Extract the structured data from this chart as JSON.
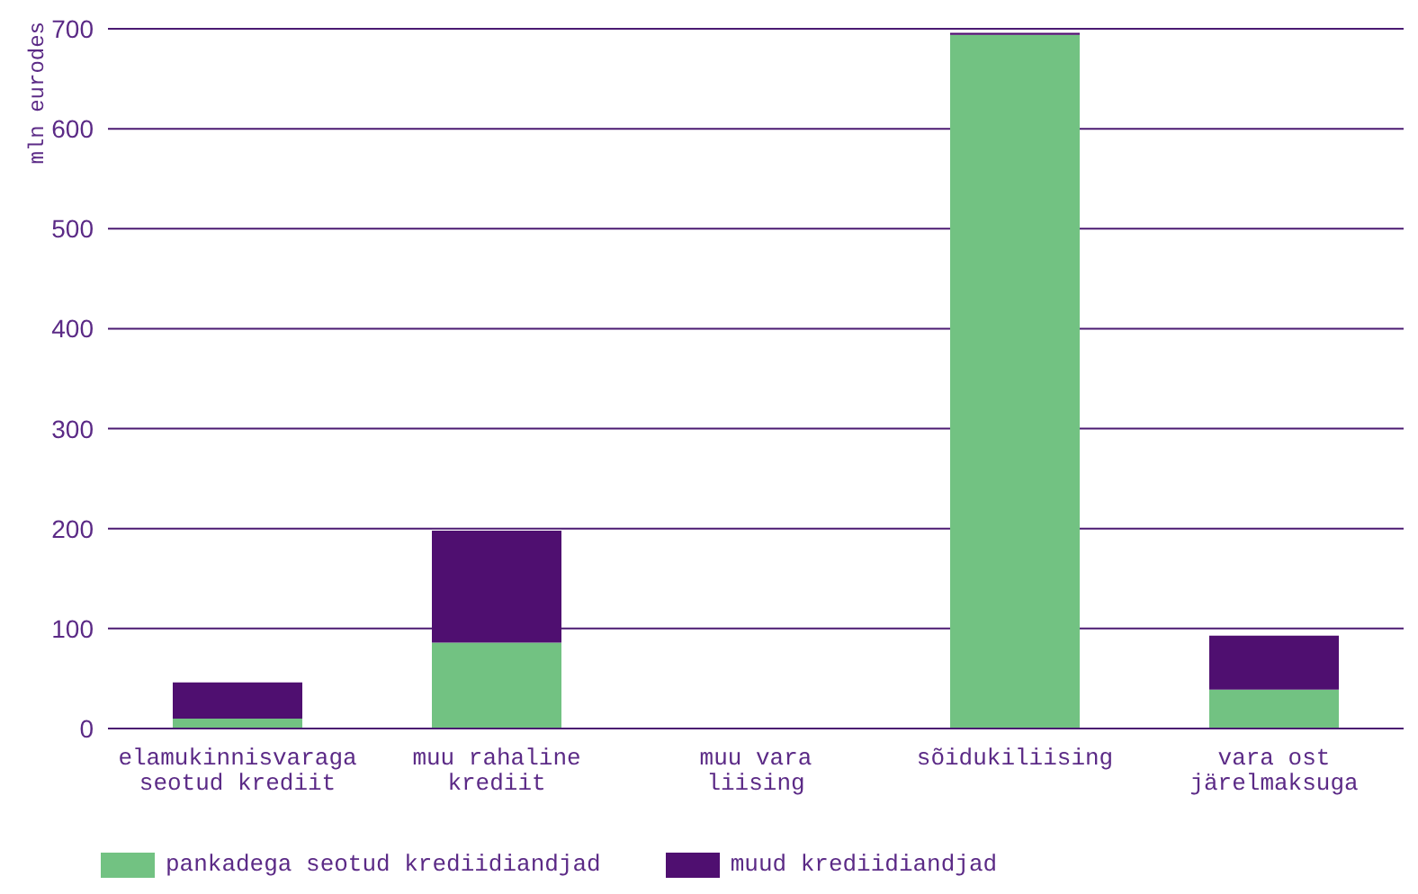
{
  "chart_data": {
    "type": "bar",
    "stacked": true,
    "ylabel": "mln eurodes",
    "categories": [
      "elamukinnisvaraga seotud krediit",
      "muu rahaline krediit",
      "muu vara liising",
      "sõidukiliising",
      "vara ost järelmaksuga"
    ],
    "series": [
      {
        "name": "pankadega seotud krediidiandjad",
        "color": "#72c282",
        "values": [
          10,
          86,
          null,
          694,
          39
        ]
      },
      {
        "name": "muud krediidiandjad",
        "color": "#4f0f70",
        "values": [
          36,
          112,
          1,
          2,
          54
        ]
      }
    ],
    "ylim": [
      0,
      700
    ],
    "yticks": [
      0,
      100,
      200,
      300,
      400,
      500,
      600,
      700
    ],
    "grid": "y",
    "legend": "bottom left"
  }
}
